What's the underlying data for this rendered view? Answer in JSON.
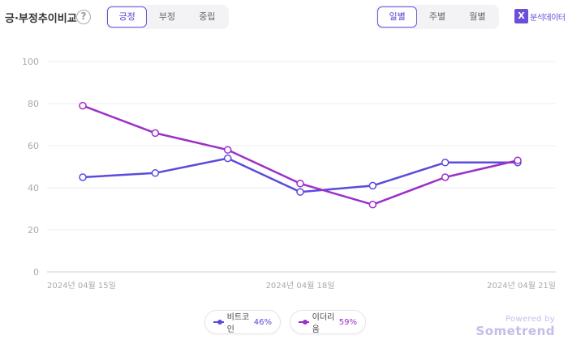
{
  "header": {
    "title": "긍·부정추이비교",
    "help_glyph": "?",
    "sentiment_tabs": [
      "긍정",
      "부정",
      "중립"
    ],
    "sentiment_active": 0,
    "period_tabs": [
      "일별",
      "주별",
      "월별"
    ],
    "period_active": 0,
    "export_label": "분석데이터",
    "export_icon": "excel-icon"
  },
  "legend": [
    {
      "name": "비트코인",
      "pct": "46%",
      "color": "#5a4bdc"
    },
    {
      "name": "이더리움",
      "pct": "59%",
      "color": "#9b30c9"
    }
  ],
  "watermark": {
    "powered_by": "Powered by",
    "brand": "Sometrend"
  },
  "chart_data": {
    "type": "line",
    "x": [
      "2024-04-15",
      "2024-04-16",
      "2024-04-17",
      "2024-04-18",
      "2024-04-19",
      "2024-04-20",
      "2024-04-21"
    ],
    "x_tick_labels": [
      "2024년 04월 15일",
      "2024년 04월 18일",
      "2024년 04월 21일"
    ],
    "x_tick_index": [
      0,
      3,
      6
    ],
    "ylim": [
      0,
      100
    ],
    "yticks": [
      0,
      20,
      40,
      60,
      80,
      100
    ],
    "grid": true,
    "series": [
      {
        "name": "비트코인",
        "color": "#5a4bdc",
        "values": [
          45,
          47,
          54,
          38,
          41,
          52,
          52
        ]
      },
      {
        "name": "이더리움",
        "color": "#9b30c9",
        "values": [
          79,
          66,
          58,
          42,
          32,
          45,
          53
        ]
      }
    ]
  }
}
